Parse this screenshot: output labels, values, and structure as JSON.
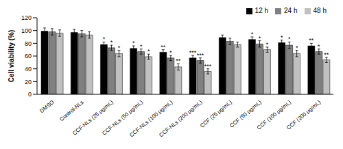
{
  "chart_data": {
    "type": "bar",
    "y_label": "Cell viability (%)",
    "categories": [
      "DMSO",
      "Control-NLs",
      "CCF-NLs (25 μg/mL)",
      "CCF-NLs (50 μg/mL)",
      "CCF-NLs (100 μg/mL)",
      "CCF-NLs (200 μg/mL)",
      "CCF (25 μg/mL)",
      "CCF (50 μg/mL)",
      "CCF (100 μg/mL)",
      "CCF (200 μg/mL)"
    ],
    "series": [
      {
        "name": "12 h",
        "color": "#000000",
        "values": [
          99,
          97,
          78,
          72,
          66,
          57,
          89,
          86,
          81,
          76
        ],
        "errors": [
          5,
          5,
          4,
          4,
          4,
          4,
          4,
          4,
          4,
          4
        ],
        "significance": [
          null,
          null,
          "*",
          "*",
          "**",
          "***",
          null,
          "*",
          "*",
          "**"
        ]
      },
      {
        "name": "24 h",
        "color": "#808080",
        "values": [
          98,
          95,
          73,
          67,
          57,
          53,
          83,
          79,
          77,
          67
        ],
        "errors": [
          5,
          5,
          4,
          4,
          4,
          4,
          5,
          5,
          5,
          4
        ],
        "significance": [
          null,
          null,
          "*",
          "*",
          "*",
          "***",
          null,
          "*",
          "*",
          "*"
        ]
      },
      {
        "name": "48 h",
        "color": "#c0c0c0",
        "values": [
          96,
          93,
          64,
          59,
          43,
          36,
          78,
          70,
          64,
          54
        ],
        "errors": [
          5,
          5,
          5,
          4,
          5,
          4,
          4,
          4,
          5,
          4
        ],
        "significance": [
          null,
          null,
          "*",
          "*",
          "**",
          "***",
          null,
          "*",
          "*",
          "**"
        ]
      }
    ],
    "ylim": [
      0,
      120
    ],
    "yticks": [
      0,
      20,
      40,
      60,
      80,
      100,
      120
    ],
    "grid": false,
    "legend": "upper right"
  }
}
